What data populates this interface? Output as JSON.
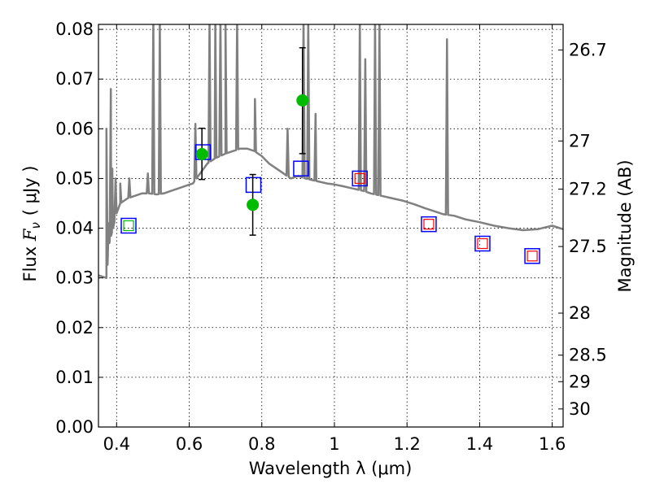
{
  "chart_data": {
    "type": "scatter",
    "title": "",
    "xlabel": "Wavelength  λ (μm)",
    "ylabel": "Flux  F_ν  ( μJy )",
    "ylabel_parts": {
      "prefix": "Flux ",
      "symbol": "F",
      "subscript": "ν",
      "unit": "( μJy )"
    },
    "y2label": "Magnitude (AB)",
    "xlim": [
      0.35,
      1.63
    ],
    "ylim": [
      0.0,
      0.081
    ],
    "grid": true,
    "x_ticks": [
      {
        "v": 0.4,
        "label": "0.4"
      },
      {
        "v": 0.6,
        "label": "0.6"
      },
      {
        "v": 0.8,
        "label": "0.8"
      },
      {
        "v": 1.0,
        "label": "1"
      },
      {
        "v": 1.2,
        "label": "1.2"
      },
      {
        "v": 1.4,
        "label": "1.4"
      },
      {
        "v": 1.6,
        "label": "1.6"
      }
    ],
    "y_ticks": [
      {
        "v": 0.0,
        "label": "0.00"
      },
      {
        "v": 0.01,
        "label": "0.01"
      },
      {
        "v": 0.02,
        "label": "0.02"
      },
      {
        "v": 0.03,
        "label": "0.03"
      },
      {
        "v": 0.04,
        "label": "0.04"
      },
      {
        "v": 0.05,
        "label": "0.05"
      },
      {
        "v": 0.06,
        "label": "0.06"
      },
      {
        "v": 0.07,
        "label": "0.07"
      },
      {
        "v": 0.08,
        "label": "0.08"
      }
    ],
    "y2_ticks": [
      {
        "mag": 26.7,
        "label": "26.7"
      },
      {
        "mag": 27,
        "label": "27"
      },
      {
        "mag": 27.2,
        "label": "27.2"
      },
      {
        "mag": 27.5,
        "label": "27.5"
      },
      {
        "mag": 28,
        "label": "28"
      },
      {
        "mag": 28.5,
        "label": "28.5"
      },
      {
        "mag": 29,
        "label": "29"
      },
      {
        "mag": 30,
        "label": "30"
      }
    ],
    "series": [
      {
        "kind": "model_spectrum",
        "color": "#808080",
        "continuum": [
          [
            0.35,
            0.0305
          ],
          [
            0.372,
            0.03
          ],
          [
            0.38,
            0.037
          ],
          [
            0.39,
            0.04
          ],
          [
            0.4,
            0.043
          ],
          [
            0.41,
            0.045
          ],
          [
            0.43,
            0.046
          ],
          [
            0.45,
            0.0465
          ],
          [
            0.47,
            0.047
          ],
          [
            0.49,
            0.047
          ],
          [
            0.51,
            0.0468
          ],
          [
            0.53,
            0.047
          ],
          [
            0.55,
            0.0475
          ],
          [
            0.57,
            0.048
          ],
          [
            0.59,
            0.0485
          ],
          [
            0.61,
            0.049
          ],
          [
            0.63,
            0.051
          ],
          [
            0.65,
            0.053
          ],
          [
            0.67,
            0.054
          ],
          [
            0.7,
            0.055
          ],
          [
            0.72,
            0.0555
          ],
          [
            0.74,
            0.056
          ],
          [
            0.76,
            0.056
          ],
          [
            0.78,
            0.0555
          ],
          [
            0.8,
            0.0545
          ],
          [
            0.82,
            0.053
          ],
          [
            0.84,
            0.052
          ],
          [
            0.86,
            0.051
          ],
          [
            0.88,
            0.05
          ],
          [
            0.9,
            0.0505
          ],
          [
            0.92,
            0.05
          ],
          [
            0.95,
            0.0495
          ],
          [
            0.98,
            0.049
          ],
          [
            1.0,
            0.0488
          ],
          [
            1.02,
            0.0485
          ],
          [
            1.05,
            0.048
          ],
          [
            1.08,
            0.0475
          ],
          [
            1.1,
            0.047
          ],
          [
            1.13,
            0.0465
          ],
          [
            1.16,
            0.046
          ],
          [
            1.19,
            0.0455
          ],
          [
            1.22,
            0.0448
          ],
          [
            1.25,
            0.044
          ],
          [
            1.28,
            0.0433
          ],
          [
            1.3,
            0.0428
          ],
          [
            1.33,
            0.0425
          ],
          [
            1.36,
            0.0418
          ],
          [
            1.4,
            0.0412
          ],
          [
            1.44,
            0.0405
          ],
          [
            1.48,
            0.04
          ],
          [
            1.52,
            0.0396
          ],
          [
            1.56,
            0.0398
          ],
          [
            1.6,
            0.0405
          ],
          [
            1.63,
            0.0398
          ]
        ],
        "lines": [
          [
            0.372,
            0.06
          ],
          [
            0.378,
            0.041
          ],
          [
            0.384,
            0.068
          ],
          [
            0.388,
            0.052
          ],
          [
            0.397,
            0.05
          ],
          [
            0.41,
            0.049
          ],
          [
            0.435,
            0.05
          ],
          [
            0.486,
            0.051
          ],
          [
            0.501,
            0.082
          ],
          [
            0.519,
            0.082
          ],
          [
            0.617,
            0.061
          ],
          [
            0.656,
            0.082
          ],
          [
            0.672,
            0.082
          ],
          [
            0.686,
            0.082
          ],
          [
            0.7,
            0.082
          ],
          [
            0.732,
            0.082
          ],
          [
            0.781,
            0.066
          ],
          [
            0.871,
            0.06
          ],
          [
            0.915,
            0.082
          ],
          [
            0.928,
            0.082
          ],
          [
            0.948,
            0.063
          ],
          [
            1.07,
            0.082
          ],
          [
            1.085,
            0.074
          ],
          [
            1.112,
            0.082
          ],
          [
            1.124,
            0.082
          ],
          [
            1.31,
            0.078
          ]
        ]
      },
      {
        "kind": "observed",
        "name": "",
        "color": "#00bb00",
        "points": [
          {
            "x": 0.635,
            "y": 0.0549,
            "yerr_lo": 0.0498,
            "yerr_hi": 0.0601
          },
          {
            "x": 0.775,
            "y": 0.0447,
            "yerr_lo": 0.0386,
            "yerr_hi": 0.0508
          },
          {
            "x": 0.912,
            "y": 0.0657,
            "yerr_lo": 0.055,
            "yerr_hi": 0.0763
          }
        ]
      },
      {
        "kind": "model_band_flux",
        "color": "#0000ff",
        "points": [
          {
            "x": 0.433,
            "y": 0.0405
          },
          {
            "x": 0.638,
            "y": 0.0553
          },
          {
            "x": 0.777,
            "y": 0.0487
          },
          {
            "x": 0.908,
            "y": 0.052
          },
          {
            "x": 1.07,
            "y": 0.05
          },
          {
            "x": 1.26,
            "y": 0.0408
          },
          {
            "x": 1.408,
            "y": 0.0369
          },
          {
            "x": 1.545,
            "y": 0.0344
          }
        ]
      },
      {
        "kind": "model_band_flux_ir",
        "color": "#ff0000",
        "points": [
          {
            "x": 1.07,
            "y": 0.05
          },
          {
            "x": 1.26,
            "y": 0.0408
          },
          {
            "x": 1.408,
            "y": 0.0369
          },
          {
            "x": 1.545,
            "y": 0.0344
          }
        ]
      },
      {
        "kind": "model_band_flux_green",
        "color": "#00bb00",
        "points": [
          {
            "x": 0.433,
            "y": 0.0405
          }
        ]
      }
    ]
  }
}
